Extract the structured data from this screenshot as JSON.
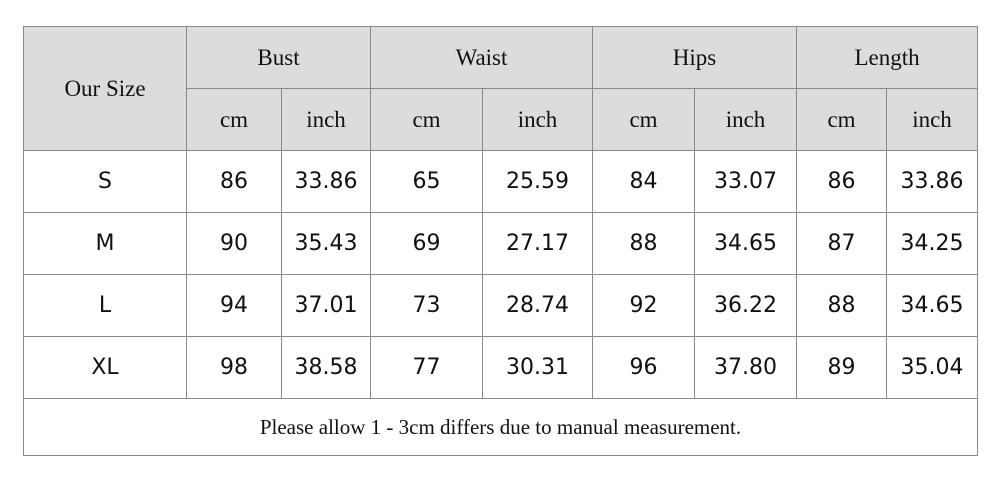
{
  "table": {
    "size_header": "Our Size",
    "groups": [
      "Bust",
      "Waist",
      "Hips",
      "Length"
    ],
    "units": [
      "cm",
      "inch",
      "cm",
      "inch",
      "cm",
      "inch",
      "cm",
      "inch"
    ],
    "rows": [
      {
        "size": "S",
        "values": [
          "86",
          "33.86",
          "65",
          "25.59",
          "84",
          "33.07",
          "86",
          "33.86"
        ]
      },
      {
        "size": "M",
        "values": [
          "90",
          "35.43",
          "69",
          "27.17",
          "88",
          "34.65",
          "87",
          "34.25"
        ]
      },
      {
        "size": "L",
        "values": [
          "94",
          "37.01",
          "73",
          "28.74",
          "92",
          "36.22",
          "88",
          "34.65"
        ]
      },
      {
        "size": "XL",
        "values": [
          "98",
          "38.58",
          "77",
          "30.31",
          "96",
          "37.80",
          "89",
          "35.04"
        ]
      }
    ],
    "note": "Please allow 1 - 3cm differs due to manual measurement."
  }
}
